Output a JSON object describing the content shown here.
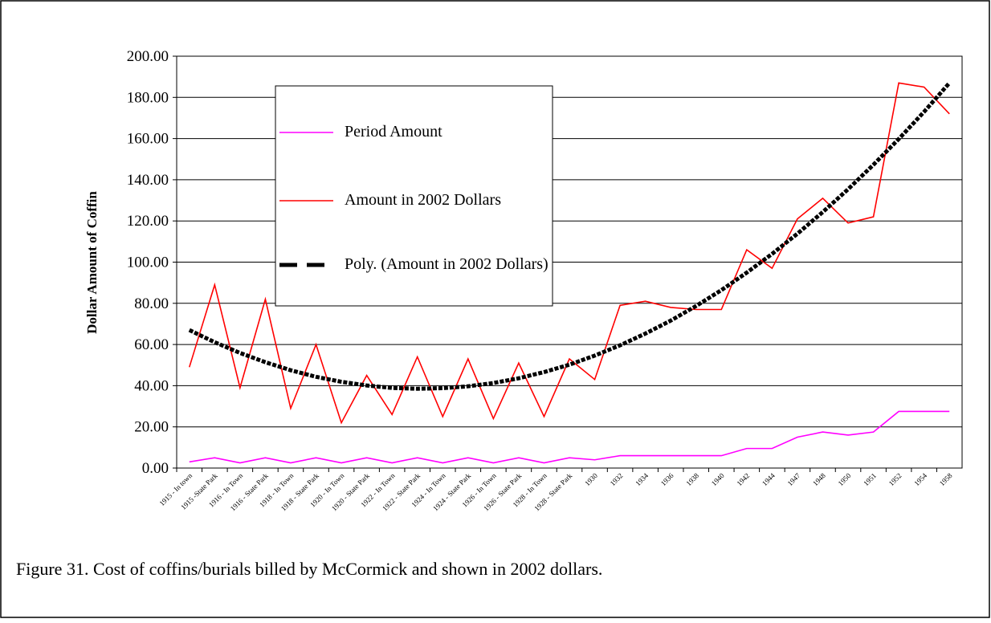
{
  "chart_data": {
    "type": "line",
    "caption": "Figure 31. Cost of coffins/burials billed by McCormick and shown in 2002 dollars.",
    "y_label": "Dollar Amount of Coffin",
    "categories": [
      "1915 - In town",
      "1915 -State Park",
      "1916 - In Town",
      "1916 - State Park",
      "1918 - In Town",
      "1918 - State Park",
      "1920 - In Town",
      "1920 - State Park",
      "1922 - In Town",
      "1922 - State Park",
      "1924 - In Town",
      "1924 - State Park",
      "1926 - In Town",
      "1926 - State Park",
      "1928 - In Town",
      "1928 - State Park",
      "1930",
      "1932",
      "1934",
      "1936",
      "1938",
      "1940",
      "1942",
      "1944",
      "1947",
      "1948",
      "1950",
      "1951",
      "1952",
      "1954",
      "1958"
    ],
    "series": [
      {
        "name": "Period Amount",
        "color": "#ff00ff",
        "values": [
          3,
          5,
          2.5,
          5,
          2.5,
          5,
          2.5,
          5,
          2.5,
          5,
          2.5,
          5,
          2.5,
          5,
          2.5,
          5,
          4,
          6,
          6,
          6,
          6,
          6,
          9.5,
          9.5,
          15,
          17.5,
          16,
          17.5,
          27.5,
          27.5,
          27.5
        ]
      },
      {
        "name": "Amount in 2002 Dollars",
        "color": "#ff0000",
        "values": [
          49,
          89,
          39,
          82,
          29,
          60,
          22,
          45,
          26,
          54,
          25,
          53,
          24,
          51,
          25,
          53,
          43,
          79,
          81,
          78,
          77,
          77,
          106,
          97,
          121,
          131,
          119,
          122,
          187,
          185,
          172
        ]
      },
      {
        "name": "Poly. (Amount in 2002 Dollars)",
        "color": "#000000",
        "dashed": true,
        "values": [
          67,
          61.1,
          55.9,
          51.4,
          47.5,
          44.3,
          41.9,
          40.1,
          38.9,
          38.5,
          38.8,
          39.7,
          41.3,
          43.6,
          46.6,
          50.2,
          54.6,
          59.6,
          65.3,
          71.6,
          78.7,
          86.4,
          94.9,
          104,
          113.8,
          124.3,
          135.4,
          147.3,
          159.8,
          173,
          187
        ]
      }
    ],
    "ylim": [
      0,
      200
    ],
    "yticks": [
      {
        "value": 0,
        "label": "0.00"
      },
      {
        "value": 20,
        "label": "20.00"
      },
      {
        "value": 40,
        "label": "40.00"
      },
      {
        "value": 60,
        "label": "60.00"
      },
      {
        "value": 80,
        "label": "80.00"
      },
      {
        "value": 100,
        "label": "100.00"
      },
      {
        "value": 120,
        "label": "120.00"
      },
      {
        "value": 140,
        "label": "140.00"
      },
      {
        "value": 160,
        "label": "160.00"
      },
      {
        "value": 180,
        "label": "180.00"
      },
      {
        "value": 200,
        "label": "200.00"
      }
    ],
    "grid": true
  }
}
